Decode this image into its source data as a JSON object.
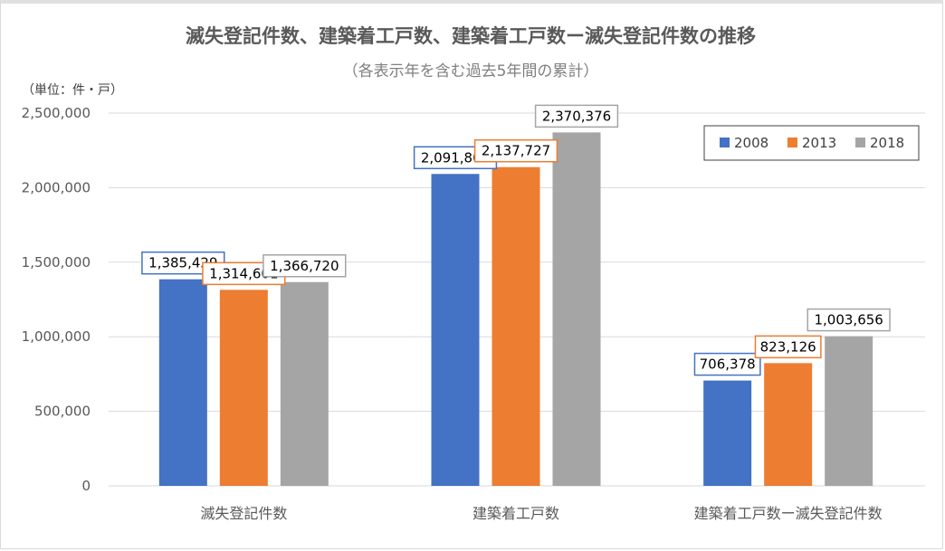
{
  "chart_data": {
    "type": "bar",
    "title": "滅失登記件数、建築着工戸数、建築着工戸数ー滅失登記件数の推移",
    "subtitle": "（各表示年を含む過去5年間の累計）",
    "unit_label": "（単位：件・戸）",
    "categories": [
      "滅失登記件数",
      "建築着工戸数",
      "建築着工戸数ー滅失登記件数"
    ],
    "series": [
      {
        "name": "2008",
        "color": "#4472c4",
        "values": [
          1385429,
          2091807,
          706378
        ]
      },
      {
        "name": "2013",
        "color": "#ed7d31",
        "values": [
          1314601,
          2137727,
          823126
        ]
      },
      {
        "name": "2018",
        "color": "#a5a5a5",
        "values": [
          1366720,
          2370376,
          1003656
        ]
      }
    ],
    "ylim": [
      0,
      2500000
    ],
    "yticks": [
      0,
      500000,
      1000000,
      1500000,
      2000000,
      2500000
    ],
    "ytick_labels": [
      "0",
      "500,000",
      "1,000,000",
      "1,500,000",
      "2,000,000",
      "2,500,000"
    ],
    "grid": true,
    "legend_position": "top-right",
    "data_labels": true
  }
}
